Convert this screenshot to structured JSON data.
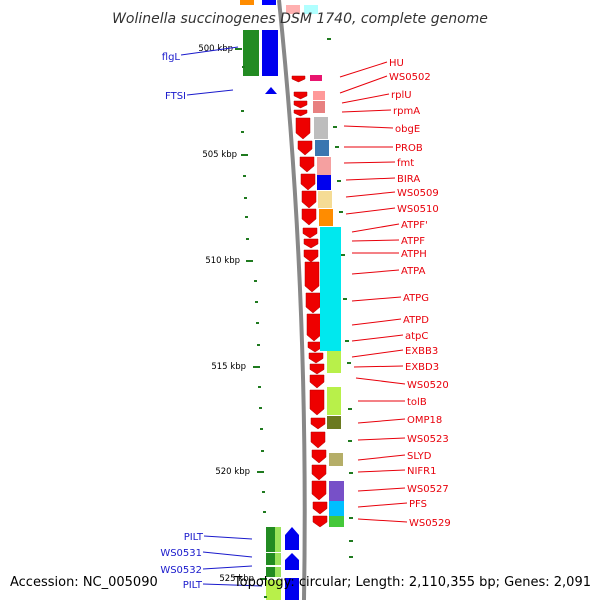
{
  "title": "Wolinella succinogenes DSM 1740, complete genome",
  "footer": {
    "accession": "Accession: NC_005090",
    "topology": "Topology: circular; Length: 2,110,355 bp; Genes: 2,091"
  },
  "colors": {
    "right_label": "#e8000b",
    "left_label": "#1a1acc",
    "tick": "#1f7a1f",
    "backbone": "#888888"
  },
  "kbp_ticks": [
    {
      "label": "500 kbp"
    },
    {
      "label": "505 kbp"
    },
    {
      "label": "510 kbp"
    },
    {
      "label": "515 kbp"
    },
    {
      "label": "520 kbp"
    },
    {
      "label": "525 kbp"
    }
  ],
  "right_labels": [
    "HU",
    "WS0502",
    "rplU",
    "rpmA",
    "obgE",
    "PROB",
    "fmt",
    "BIRA",
    "WS0509",
    "WS0510",
    "ATPF'",
    "ATPF",
    "ATPH",
    "ATPA",
    "ATPG",
    "ATPD",
    "atpC",
    "EXBB3",
    "EXBD3",
    "WS0520",
    "tolB",
    "OMP18",
    "WS0523",
    "SLYD",
    "NIFR1",
    "WS0527",
    "PFS",
    "WS0529"
  ],
  "left_labels": [
    "flgL",
    "FTSI",
    "PILT",
    "WS0531",
    "WS0532",
    "PILT"
  ]
}
